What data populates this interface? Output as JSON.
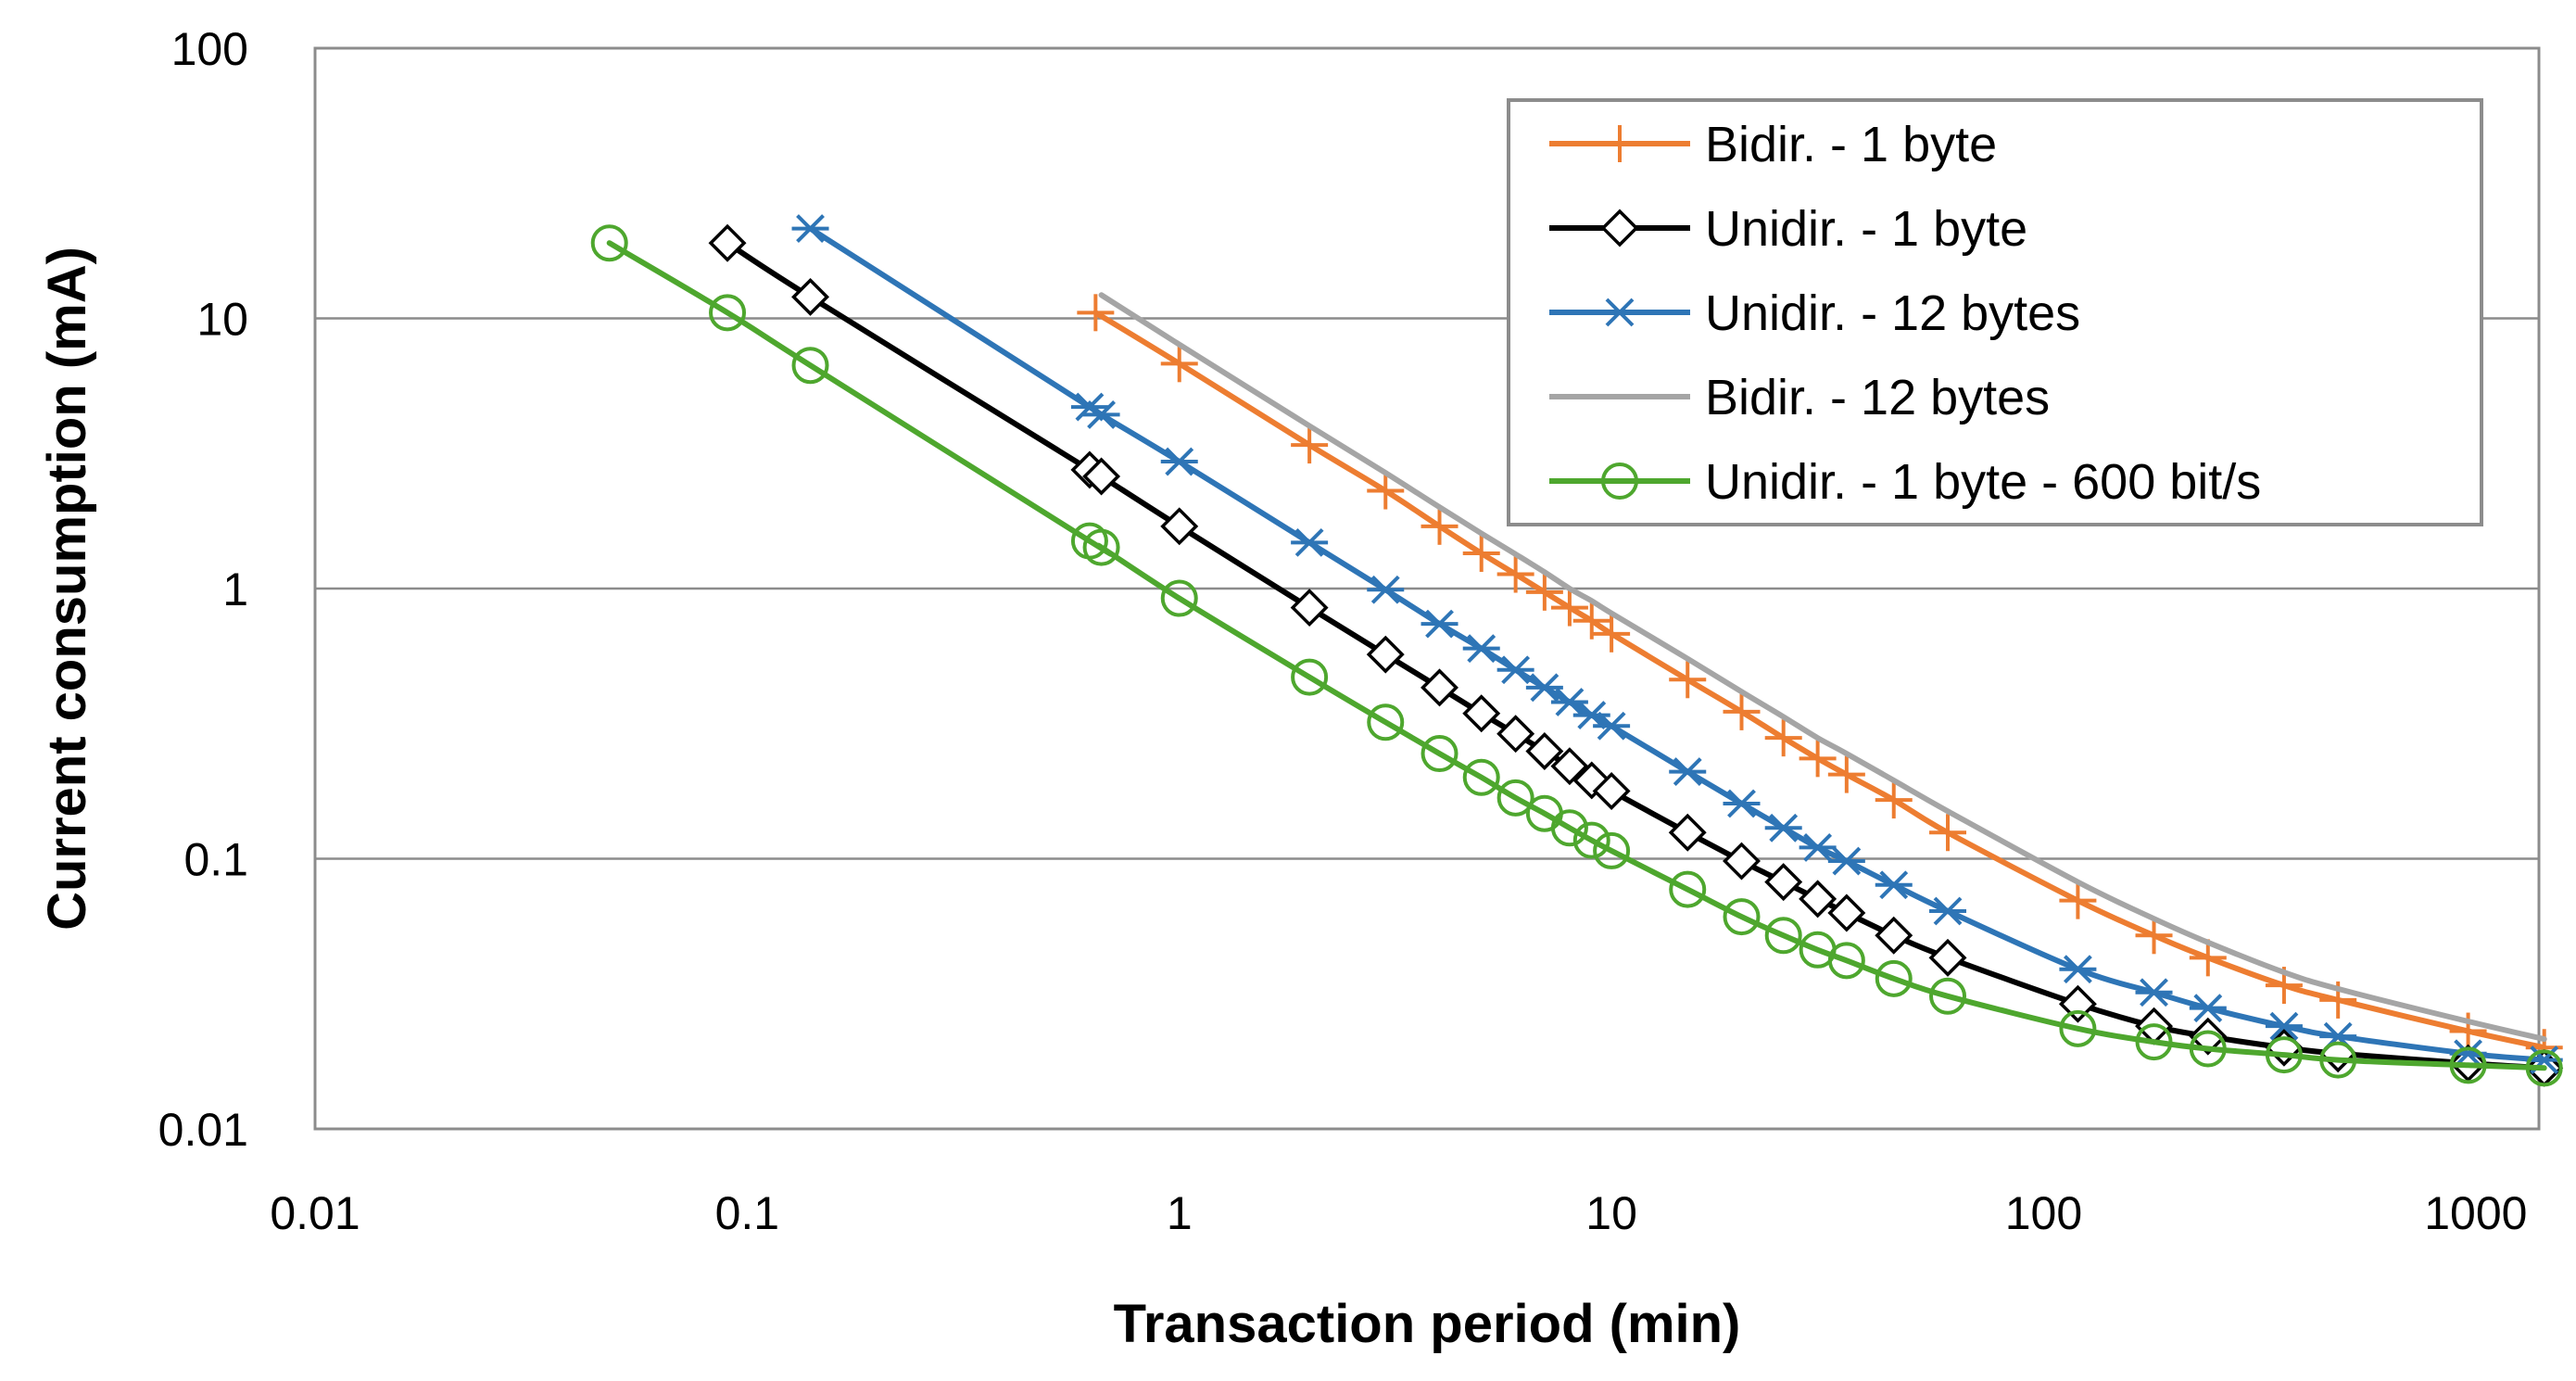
{
  "chart_data": {
    "type": "line",
    "title": "",
    "xlabel": "Transaction period (min)",
    "ylabel": "Current consumption (mA)",
    "x_scale": "log",
    "y_scale": "log",
    "xlim": [
      0.01,
      1400
    ],
    "ylim": [
      0.01,
      100
    ],
    "x_tick_labels": [
      "0.01",
      "0.1",
      "1",
      "10",
      "100",
      "1000"
    ],
    "y_tick_labels": [
      "0.01",
      "0.1",
      "1",
      "10",
      "100"
    ],
    "grid": "horizontal",
    "legend_position": "top-right",
    "series": [
      {
        "name": "Bidir. - 1 byte",
        "color": "#ED7D31",
        "marker": "plus",
        "x": [
          0.64,
          1,
          2,
          3,
          4,
          5,
          6,
          7,
          8,
          9,
          10,
          15,
          20,
          25,
          30,
          35,
          45,
          60,
          120,
          180,
          240,
          360,
          480,
          960,
          1440
        ],
        "y": [
          10.5,
          6.8,
          3.4,
          2.3,
          1.7,
          1.35,
          1.13,
          0.97,
          0.85,
          0.76,
          0.68,
          0.46,
          0.35,
          0.28,
          0.235,
          0.205,
          0.165,
          0.125,
          0.07,
          0.052,
          0.043,
          0.034,
          0.03,
          0.023,
          0.02
        ]
      },
      {
        "name": "Unidir. - 1 byte",
        "color": "#000000",
        "marker": "diamond",
        "x": [
          0.09,
          0.14,
          0.62,
          0.66,
          1,
          2,
          3,
          4,
          5,
          6,
          7,
          8,
          9,
          10,
          15,
          20,
          25,
          30,
          35,
          45,
          60,
          120,
          180,
          240,
          360,
          480,
          960,
          1440
        ],
        "y": [
          19,
          12,
          2.75,
          2.6,
          1.7,
          0.85,
          0.57,
          0.43,
          0.345,
          0.29,
          0.25,
          0.22,
          0.195,
          0.178,
          0.125,
          0.098,
          0.082,
          0.071,
          0.063,
          0.052,
          0.043,
          0.029,
          0.024,
          0.022,
          0.02,
          0.019,
          0.0175,
          0.0168
        ]
      },
      {
        "name": "Unidir. - 12 bytes",
        "color": "#2E75B6",
        "marker": "asterisk",
        "x": [
          0.14,
          0.62,
          0.66,
          1,
          2,
          3,
          4,
          5,
          6,
          7,
          8,
          9,
          10,
          15,
          20,
          25,
          30,
          35,
          45,
          60,
          120,
          180,
          240,
          360,
          480,
          960,
          1440
        ],
        "y": [
          21.5,
          4.7,
          4.4,
          2.95,
          1.48,
          0.99,
          0.74,
          0.6,
          0.5,
          0.43,
          0.38,
          0.34,
          0.31,
          0.21,
          0.16,
          0.13,
          0.11,
          0.098,
          0.08,
          0.064,
          0.039,
          0.032,
          0.028,
          0.024,
          0.022,
          0.019,
          0.018
        ]
      },
      {
        "name": "Bidir. - 12 bytes",
        "color": "#A5A5A5",
        "marker": "none",
        "x": [
          0.66,
          1,
          2,
          3,
          4,
          5,
          6,
          7,
          8,
          9,
          10,
          15,
          20,
          25,
          30,
          35,
          45,
          60,
          120,
          180,
          240,
          360,
          480,
          960,
          1440
        ],
        "y": [
          12.2,
          8.0,
          4.0,
          2.68,
          2.0,
          1.6,
          1.34,
          1.15,
          1.0,
          0.9,
          0.81,
          0.55,
          0.415,
          0.335,
          0.28,
          0.245,
          0.195,
          0.15,
          0.082,
          0.06,
          0.049,
          0.038,
          0.033,
          0.025,
          0.0215
        ]
      },
      {
        "name": "Unidir. - 1 byte - 600 bit/s",
        "color": "#4EA72E",
        "marker": "circle",
        "x": [
          0.048,
          0.09,
          0.14,
          0.62,
          0.66,
          1,
          2,
          3,
          4,
          5,
          6,
          7,
          8,
          9,
          10,
          15,
          20,
          25,
          30,
          35,
          45,
          60,
          120,
          180,
          240,
          360,
          480,
          960,
          1440
        ],
        "y": [
          19,
          10.5,
          6.7,
          1.5,
          1.42,
          0.92,
          0.47,
          0.32,
          0.245,
          0.2,
          0.168,
          0.147,
          0.13,
          0.117,
          0.107,
          0.077,
          0.061,
          0.052,
          0.046,
          0.042,
          0.036,
          0.031,
          0.0235,
          0.021,
          0.0198,
          0.0188,
          0.018,
          0.0172,
          0.0168
        ]
      }
    ]
  }
}
